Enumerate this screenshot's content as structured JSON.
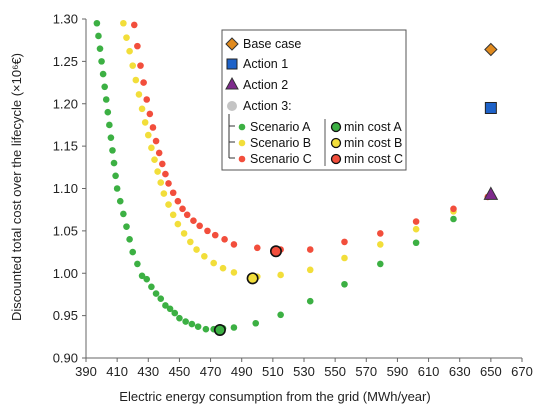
{
  "chart_data": {
    "type": "scatter",
    "xlabel": "Electric energy consumption from the grid (MWh/year)",
    "ylabel": "Discounted total cost over the lifecycle (×10⁶€)",
    "xlim": [
      390,
      670
    ],
    "ylim": [
      0.9,
      1.3
    ],
    "xticks": [
      "390",
      "410",
      "430",
      "450",
      "470",
      "490",
      "510",
      "530",
      "550",
      "570",
      "590",
      "610",
      "630",
      "650",
      "670"
    ],
    "yticks": [
      "0.90",
      "0.95",
      "1.00",
      "1.05",
      "1.10",
      "1.15",
      "1.20",
      "1.25",
      "1.30"
    ],
    "grid": false,
    "legend_position": "top-right",
    "colors": {
      "scenario_a": "#3cb043",
      "scenario_b": "#f2de3a",
      "scenario_c": "#f24e3c",
      "base_case": "#e08a1e",
      "action_1": "#1e62c8",
      "action_2": "#7e2a8c",
      "action_3": "#c4c4c4"
    },
    "series": [
      {
        "name": "Scenario A",
        "x": [
          397,
          398,
          399,
          400,
          401,
          402,
          403,
          404,
          405,
          406,
          407,
          408,
          409,
          410,
          412,
          414,
          416,
          418,
          420,
          423,
          426,
          429,
          432,
          435,
          438,
          441,
          444,
          447,
          450,
          454,
          458,
          462,
          467,
          472,
          478,
          485,
          499,
          515,
          534,
          556,
          579,
          602,
          626
        ],
        "y": [
          1.295,
          1.28,
          1.265,
          1.25,
          1.235,
          1.22,
          1.205,
          1.19,
          1.175,
          1.16,
          1.145,
          1.13,
          1.115,
          1.1,
          1.085,
          1.07,
          1.055,
          1.04,
          1.025,
          1.011,
          0.997,
          0.993,
          0.984,
          0.976,
          0.97,
          0.962,
          0.958,
          0.953,
          0.947,
          0.943,
          0.94,
          0.937,
          0.934,
          0.934,
          0.935,
          0.936,
          0.941,
          0.951,
          0.967,
          0.987,
          1.011,
          1.036,
          1.064
        ]
      },
      {
        "name": "Scenario B",
        "x": [
          414,
          416,
          418,
          420,
          422,
          424,
          426,
          428,
          430,
          432,
          434,
          436,
          438,
          440,
          443,
          446,
          449,
          453,
          457,
          461,
          466,
          472,
          478,
          485,
          500,
          515,
          534,
          556,
          579,
          602,
          626
        ],
        "y": [
          1.295,
          1.278,
          1.262,
          1.245,
          1.228,
          1.211,
          1.194,
          1.178,
          1.163,
          1.148,
          1.134,
          1.12,
          1.107,
          1.094,
          1.081,
          1.069,
          1.058,
          1.047,
          1.037,
          1.028,
          1.02,
          1.012,
          1.006,
          1.001,
          0.996,
          0.998,
          1.004,
          1.018,
          1.034,
          1.052,
          1.073
        ]
      },
      {
        "name": "Scenario C",
        "x": [
          421,
          423,
          425,
          427,
          429,
          431,
          433,
          435,
          437,
          439,
          441,
          443,
          446,
          449,
          452,
          455,
          459,
          463,
          468,
          473,
          479,
          485,
          500,
          515,
          534,
          556,
          579,
          602,
          626,
          648
        ],
        "y": [
          1.293,
          1.268,
          1.245,
          1.225,
          1.205,
          1.188,
          1.172,
          1.156,
          1.142,
          1.129,
          1.117,
          1.106,
          1.095,
          1.085,
          1.076,
          1.069,
          1.062,
          1.056,
          1.05,
          1.045,
          1.04,
          1.034,
          1.03,
          1.028,
          1.028,
          1.037,
          1.047,
          1.061,
          1.076,
          1.09
        ]
      },
      {
        "name": "min cost A",
        "x": [
          476
        ],
        "y": [
          0.933
        ]
      },
      {
        "name": "min cost B",
        "x": [
          497
        ],
        "y": [
          0.994
        ]
      },
      {
        "name": "min cost C",
        "x": [
          512
        ],
        "y": [
          1.026
        ]
      },
      {
        "name": "Base case",
        "x": [
          650
        ],
        "y": [
          1.264
        ]
      },
      {
        "name": "Action 1",
        "x": [
          650
        ],
        "y": [
          1.195
        ]
      },
      {
        "name": "Action 2",
        "x": [
          650
        ],
        "y": [
          1.093
        ]
      }
    ],
    "legend": {
      "base_case": "Base case",
      "action_1": "Action 1",
      "action_2": "Action 2",
      "action_3": "Action 3:",
      "scenario_a": "Scenario A",
      "scenario_b": "Scenario B",
      "scenario_c": "Scenario C",
      "min_cost_a": "min cost A",
      "min_cost_b": "min cost B",
      "min_cost_c": "min cost C"
    }
  }
}
